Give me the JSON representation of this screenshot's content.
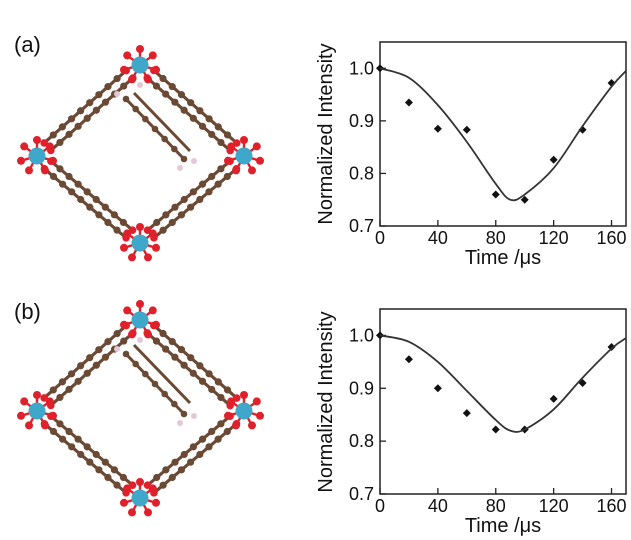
{
  "panels": [
    {
      "label": "(a)"
    },
    {
      "label": "(b)"
    }
  ],
  "colors": {
    "metal": "#3fa7c9",
    "oxygen": "#e0202a",
    "carbon": "#6b4a35",
    "hydrogen": "#e2c8d8",
    "curve": "#333333",
    "marker": "#111111"
  },
  "chart_data": [
    {
      "type": "scatter",
      "panel": "(a)",
      "xlabel": "Time /μs",
      "ylabel": "Normalized Intensity",
      "xlim": [
        0,
        170
      ],
      "ylim": [
        0.7,
        1.05
      ],
      "xticks": [
        0,
        40,
        80,
        120,
        160
      ],
      "xtick_labels": [
        "0",
        "40",
        "80",
        "120",
        "160"
      ],
      "yticks": [
        0.7,
        0.8,
        0.9,
        1.0
      ],
      "ytick_labels": [
        "0.7",
        "0.8",
        "0.9",
        "1.0"
      ],
      "grid": false,
      "series": [
        {
          "kind": "points",
          "x": [
            0,
            20,
            40,
            60,
            80,
            100,
            120,
            140,
            160
          ],
          "y": [
            1.0,
            0.935,
            0.885,
            0.883,
            0.76,
            0.75,
            0.826,
            0.883,
            0.972
          ]
        },
        {
          "kind": "fit",
          "x": [
            0,
            20,
            40,
            60,
            80,
            90,
            100,
            120,
            140,
            160,
            170
          ],
          "y": [
            1.0,
            0.982,
            0.93,
            0.86,
            0.78,
            0.75,
            0.76,
            0.81,
            0.89,
            0.965,
            0.995
          ]
        }
      ]
    },
    {
      "type": "scatter",
      "panel": "(b)",
      "xlabel": "Time /μs",
      "ylabel": "Normalized Intensity",
      "xlim": [
        0,
        170
      ],
      "ylim": [
        0.7,
        1.05
      ],
      "xticks": [
        0,
        40,
        80,
        120,
        160
      ],
      "xtick_labels": [
        "0",
        "40",
        "80",
        "120",
        "160"
      ],
      "yticks": [
        0.7,
        0.8,
        0.9,
        1.0
      ],
      "ytick_labels": [
        "0.7",
        "0.8",
        "0.9",
        "1.0"
      ],
      "grid": false,
      "series": [
        {
          "kind": "points",
          "x": [
            0,
            20,
            40,
            60,
            80,
            100,
            120,
            140,
            160
          ],
          "y": [
            1.0,
            0.955,
            0.9,
            0.853,
            0.822,
            0.822,
            0.88,
            0.91,
            0.978
          ]
        },
        {
          "kind": "fit",
          "x": [
            0,
            20,
            40,
            60,
            80,
            90,
            100,
            120,
            140,
            160,
            170
          ],
          "y": [
            1.0,
            0.988,
            0.95,
            0.895,
            0.84,
            0.82,
            0.822,
            0.86,
            0.92,
            0.975,
            0.995
          ]
        }
      ]
    }
  ]
}
